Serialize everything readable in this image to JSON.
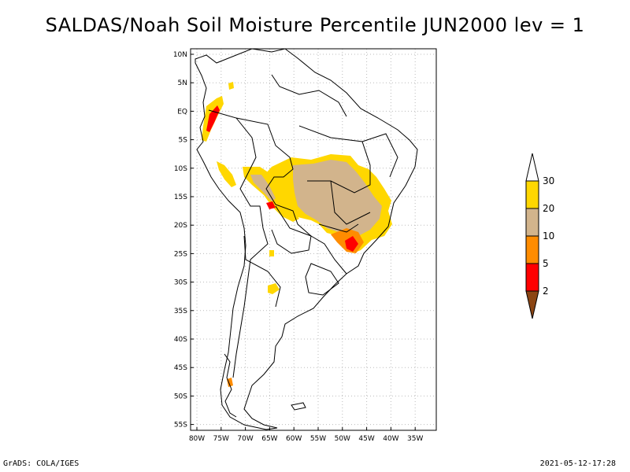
{
  "title": "SALDAS/Noah Soil Moisture Percentile JUN2000 lev = 1",
  "footer_left": "GrADS: COLA/IGES",
  "footer_right": "2021-05-12-17:28",
  "map": {
    "lat_labels": [
      "10N",
      "5N",
      "EQ",
      "5S",
      "10S",
      "15S",
      "20S",
      "25S",
      "30S",
      "35S",
      "40S",
      "45S",
      "50S",
      "55S"
    ],
    "lon_labels": [
      "80W",
      "75W",
      "70W",
      "65W",
      "60W",
      "55W",
      "50W",
      "45W",
      "40W",
      "35W"
    ]
  },
  "colorbar": {
    "labels": [
      "30",
      "20",
      "10",
      "5",
      "2"
    ],
    "colors": {
      "above_30": "#ffffff",
      "20_30": "#ffd700",
      "10_20": "#d2b48c",
      "5_10": "#ff8c00",
      "2_5": "#ff0000",
      "below_2": "#8b4513"
    }
  }
}
